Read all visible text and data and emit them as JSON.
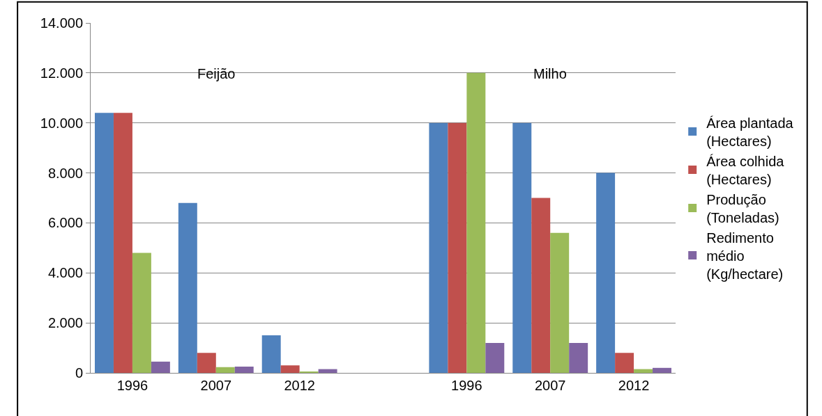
{
  "chart_data": {
    "type": "bar",
    "categories": [
      "1996",
      "2007",
      "2012",
      null,
      "1996",
      "2007",
      "2012"
    ],
    "series": [
      {
        "name": "Área plantada (Hectares)",
        "color": "#4f81bd",
        "values": [
          10400,
          6800,
          1500,
          null,
          10000,
          10000,
          8000
        ]
      },
      {
        "name": "Área colhida (Hectares)",
        "color": "#c0504d",
        "values": [
          10400,
          800,
          300,
          null,
          10000,
          7000,
          800
        ]
      },
      {
        "name": "Produção (Toneladas)",
        "color": "#9bbb59",
        "values": [
          4800,
          230,
          30,
          null,
          12000,
          5600,
          150
        ]
      },
      {
        "name": "Redimento médio (Kg/hectare)",
        "color": "#8064a2",
        "values": [
          450,
          250,
          150,
          null,
          1200,
          1200,
          200
        ]
      }
    ],
    "annotations": [
      "Feijão",
      "Milho"
    ],
    "ylim": [
      0,
      14000
    ],
    "yticks": [
      0,
      {
        "value": 2000,
        "label": "2.000"
      },
      {
        "value": 4000,
        "label": "4.000"
      },
      {
        "value": 6000,
        "label": "6.000"
      },
      {
        "value": 8000,
        "label": "8.000"
      },
      {
        "value": 10000,
        "label": "10.000"
      },
      {
        "value": 12000,
        "label": "12.000"
      },
      {
        "value": 14000,
        "label": "14.000"
      }
    ],
    "grid": "y",
    "legend": "right"
  }
}
